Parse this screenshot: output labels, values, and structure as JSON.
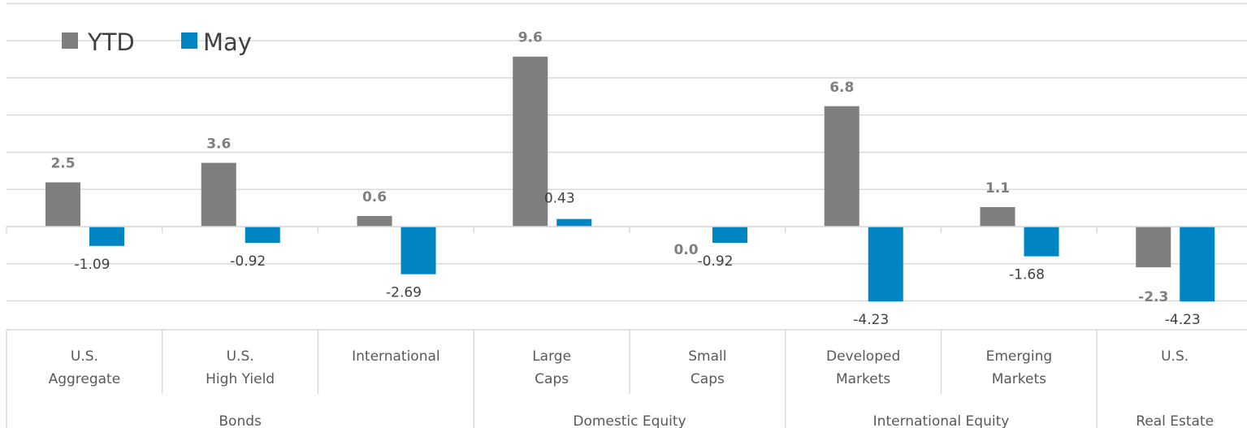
{
  "chart_data": {
    "type": "bar",
    "groups": [
      {
        "label": "Bonds",
        "span": 3
      },
      {
        "label": "Domestic Equity",
        "span": 2
      },
      {
        "label": "International Equity",
        "span": 2
      },
      {
        "label": "Real Estate",
        "span": 1
      }
    ],
    "categories": [
      [
        "U.S.",
        "Aggregate"
      ],
      [
        "U.S.",
        "High Yield"
      ],
      [
        "International"
      ],
      [
        "Large",
        "Caps"
      ],
      [
        "Small",
        "Caps"
      ],
      [
        "Developed",
        "Markets"
      ],
      [
        "Emerging",
        "Markets"
      ],
      [
        "U.S."
      ]
    ],
    "series": [
      {
        "name": "YTD",
        "color": "#7f7f80",
        "values": [
          2.5,
          3.6,
          0.6,
          9.6,
          0.0,
          6.8,
          1.1,
          -2.3
        ],
        "labels": [
          "2.5",
          "3.6",
          "0.6",
          "9.6",
          "0.0",
          "6.8",
          "1.1",
          "-2.3"
        ]
      },
      {
        "name": "May",
        "color": "#0085c3",
        "values": [
          -1.09,
          -0.92,
          -2.69,
          0.43,
          -0.92,
          -4.23,
          -1.68,
          -4.23
        ],
        "labels": [
          "-1.09",
          "-0.92",
          "-2.69",
          "0.43",
          "-0.92",
          "-4.23",
          "-1.68",
          "-4.23"
        ]
      }
    ],
    "ylim": [
      -4.2,
      12.6
    ],
    "grid": true,
    "legend": "top-left",
    "title": "",
    "xlabel": "",
    "ylabel": ""
  }
}
